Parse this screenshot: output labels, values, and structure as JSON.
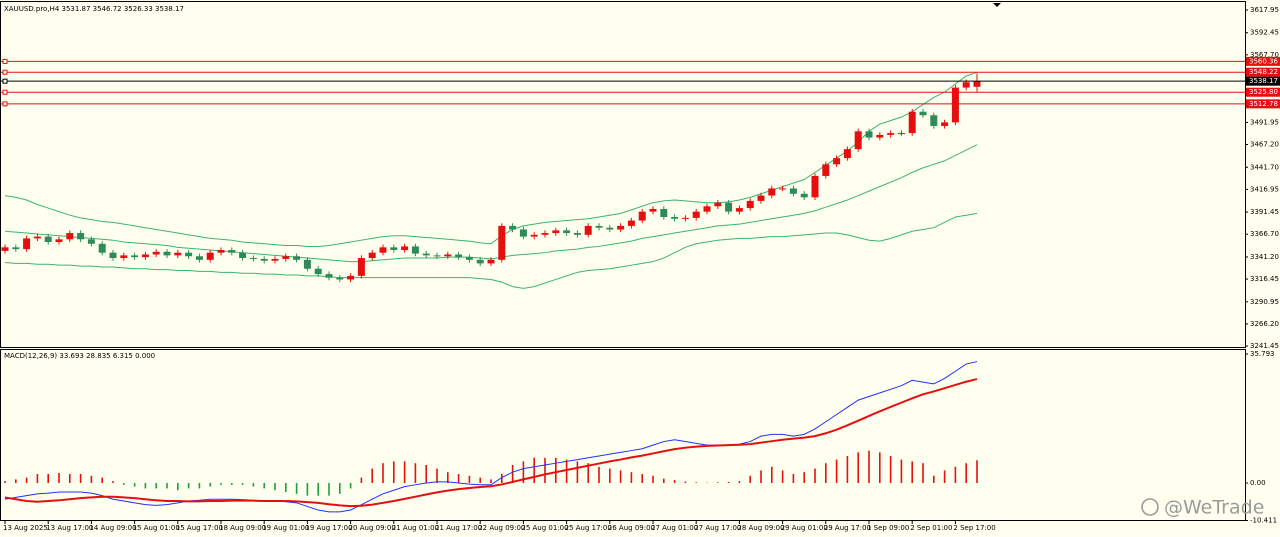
{
  "chart_data": [
    {
      "type": "candlestick",
      "title": "XAUUSD.pro,H4 3531.87 3546.72 3526.33 3538.17",
      "categories": [
        "13 Aug 2025",
        null,
        null,
        null,
        "13 Aug 17:00",
        null,
        null,
        null,
        "14 Aug 09:00",
        null,
        null,
        null,
        "15 Aug 01:00",
        null,
        null,
        null,
        "15 Aug 17:00",
        null,
        null,
        null,
        "18 Aug 09:00",
        null,
        null,
        null,
        "19 Aug 01:00",
        null,
        null,
        null,
        "19 Aug 17:00",
        null,
        null,
        null,
        "20 Aug 09:00",
        null,
        null,
        null,
        "21 Aug 01:00",
        null,
        null,
        null,
        "21 Aug 17:00",
        null,
        null,
        null,
        "22 Aug 09:00",
        null,
        null,
        null,
        "25 Aug 01:00",
        null,
        null,
        null,
        "25 Aug 17:00",
        null,
        null,
        null,
        "26 Aug 09:00",
        null,
        null,
        null,
        "27 Aug 01:00",
        null,
        null,
        null,
        "27 Aug 17:00",
        null,
        null,
        null,
        "28 Aug 09:00",
        null,
        null,
        null,
        "29 Aug 01:00",
        null,
        null,
        null,
        "29 Aug 17:00",
        null,
        null,
        null,
        "1 Sep 09:00",
        null,
        null,
        null,
        "2 Sep 01:00",
        null,
        null,
        null,
        "2 Sep 17:00",
        null,
        null
      ],
      "open": [
        3348,
        3352,
        3350,
        3362,
        3364,
        3358,
        3361,
        3368,
        3361,
        3356,
        3346,
        3340,
        3343,
        3341,
        3344,
        3347,
        3343,
        3346,
        3342,
        3338,
        3346,
        3349,
        3346,
        3340,
        3339,
        3337,
        3339,
        3342,
        3338,
        3328,
        3322,
        3318,
        3316,
        3320,
        3340,
        3346,
        3352,
        3349,
        3353,
        3345,
        3343,
        3342,
        3344,
        3341,
        3338,
        3334,
        3338,
        3376,
        3372,
        3364,
        3366,
        3368,
        3371,
        3368,
        3366,
        3376,
        3374,
        3372,
        3376,
        3382,
        3392,
        3395,
        3386,
        3384,
        3385,
        3392,
        3398,
        3402,
        3392,
        3396,
        3404,
        3410,
        3418,
        3418,
        3412,
        3408,
        3432,
        3445,
        3452,
        3462,
        3482,
        3475,
        3478,
        3480,
        3480,
        3504,
        3500,
        3488,
        3492,
        3531,
        3531.87
      ],
      "high": [
        3355,
        3355,
        3365,
        3367,
        3367,
        3364,
        3371,
        3371,
        3364,
        3359,
        3349,
        3346,
        3346,
        3347,
        3350,
        3350,
        3349,
        3349,
        3345,
        3349,
        3352,
        3352,
        3349,
        3343,
        3342,
        3342,
        3345,
        3345,
        3341,
        3331,
        3325,
        3321,
        3323,
        3343,
        3349,
        3355,
        3355,
        3356,
        3356,
        3348,
        3346,
        3347,
        3347,
        3344,
        3341,
        3341,
        3379,
        3379,
        3375,
        3369,
        3371,
        3374,
        3374,
        3371,
        3379,
        3379,
        3377,
        3379,
        3385,
        3395,
        3398,
        3398,
        3389,
        3388,
        3395,
        3401,
        3405,
        3405,
        3399,
        3407,
        3413,
        3421,
        3421,
        3421,
        3415,
        3435,
        3448,
        3455,
        3465,
        3485,
        3485,
        3481,
        3483,
        3483,
        3507,
        3507,
        3503,
        3495,
        3534,
        3540,
        3546.72
      ],
      "low": [
        3345,
        3347,
        3347,
        3359,
        3355,
        3355,
        3358,
        3358,
        3353,
        3343,
        3337,
        3337,
        3338,
        3338,
        3341,
        3340,
        3340,
        3339,
        3335,
        3335,
        3343,
        3343,
        3337,
        3336,
        3334,
        3334,
        3336,
        3335,
        3325,
        3319,
        3315,
        3313,
        3313,
        3317,
        3337,
        3343,
        3346,
        3346,
        3342,
        3340,
        3339,
        3339,
        3338,
        3335,
        3331,
        3331,
        3335,
        3369,
        3361,
        3361,
        3363,
        3365,
        3365,
        3363,
        3363,
        3371,
        3369,
        3369,
        3373,
        3379,
        3389,
        3383,
        3381,
        3381,
        3382,
        3389,
        3395,
        3389,
        3389,
        3393,
        3401,
        3407,
        3415,
        3409,
        3405,
        3405,
        3429,
        3442,
        3449,
        3459,
        3472,
        3472,
        3475,
        3477,
        3477,
        3497,
        3485,
        3485,
        3489,
        3528,
        3526.33
      ],
      "close": [
        3352,
        3350,
        3362,
        3364,
        3358,
        3361,
        3368,
        3361,
        3356,
        3346,
        3340,
        3343,
        3341,
        3344,
        3347,
        3343,
        3346,
        3342,
        3338,
        3346,
        3349,
        3346,
        3340,
        3339,
        3337,
        3339,
        3342,
        3338,
        3328,
        3322,
        3318,
        3316,
        3320,
        3340,
        3346,
        3352,
        3349,
        3353,
        3345,
        3343,
        3342,
        3344,
        3341,
        3338,
        3334,
        3338,
        3376,
        3372,
        3364,
        3366,
        3368,
        3371,
        3368,
        3366,
        3376,
        3374,
        3372,
        3376,
        3382,
        3392,
        3395,
        3386,
        3384,
        3385,
        3392,
        3398,
        3402,
        3392,
        3396,
        3404,
        3410,
        3418,
        3418,
        3412,
        3408,
        3432,
        3445,
        3452,
        3462,
        3482,
        3475,
        3478,
        3480,
        3480,
        3504,
        3500,
        3488,
        3492,
        3531,
        3537,
        3538.17
      ],
      "up_color": "#e60f0f",
      "down_color": "#2e8b57",
      "series": [
        {
          "color": "#3cb371",
          "values": [
            3410,
            3408,
            3405,
            3400,
            3396,
            3392,
            3388,
            3385,
            3383,
            3381,
            3380,
            3378,
            3376,
            3374,
            3372,
            3370,
            3368,
            3366,
            3364,
            3362,
            3361,
            3360,
            3358,
            3357,
            3356,
            3355,
            3354,
            3354,
            3353,
            3353,
            3354,
            3356,
            3358,
            3360,
            3362,
            3364,
            3365,
            3365,
            3364,
            3363,
            3362,
            3361,
            3360,
            3359,
            3357,
            3356,
            3365,
            3372,
            3376,
            3378,
            3380,
            3381,
            3382,
            3383,
            3384,
            3386,
            3388,
            3390,
            3394,
            3398,
            3402,
            3404,
            3405,
            3404,
            3403,
            3402,
            3402,
            3403,
            3405,
            3408,
            3412,
            3416,
            3420,
            3424,
            3428,
            3436,
            3444,
            3452,
            3460,
            3470,
            3482,
            3490,
            3494,
            3498,
            3504,
            3512,
            3520,
            3526,
            3535,
            3544,
            3548
          ]
        },
        {
          "color": "#3cb371",
          "values": [
            3370,
            3369,
            3368,
            3367,
            3366,
            3365,
            3364,
            3363,
            3362,
            3361,
            3360,
            3358,
            3357,
            3356,
            3355,
            3354,
            3352,
            3351,
            3350,
            3349,
            3348,
            3347,
            3346,
            3345,
            3344,
            3343,
            3342,
            3341,
            3340,
            3339,
            3338,
            3337,
            3336,
            3336,
            3337,
            3338,
            3339,
            3340,
            3340,
            3340,
            3340,
            3341,
            3341,
            3341,
            3340,
            3339,
            3341,
            3343,
            3344,
            3345,
            3346,
            3348,
            3349,
            3350,
            3352,
            3353,
            3355,
            3357,
            3359,
            3362,
            3364,
            3366,
            3368,
            3370,
            3372,
            3374,
            3376,
            3377,
            3378,
            3380,
            3382,
            3384,
            3386,
            3388,
            3390,
            3393,
            3397,
            3401,
            3405,
            3410,
            3415,
            3420,
            3425,
            3430,
            3436,
            3441,
            3445,
            3449,
            3455,
            3461,
            3467
          ]
        },
        {
          "color": "#3cb371",
          "values": [
            3335,
            3334,
            3334,
            3333,
            3333,
            3332,
            3332,
            3331,
            3331,
            3330,
            3330,
            3329,
            3328,
            3328,
            3327,
            3327,
            3326,
            3326,
            3325,
            3325,
            3324,
            3324,
            3323,
            3323,
            3322,
            3322,
            3321,
            3321,
            3320,
            3320,
            3319,
            3318,
            3318,
            3318,
            3318,
            3318,
            3318,
            3318,
            3318,
            3318,
            3318,
            3318,
            3318,
            3318,
            3317,
            3316,
            3313,
            3308,
            3306,
            3308,
            3312,
            3316,
            3320,
            3324,
            3326,
            3327,
            3328,
            3330,
            3332,
            3334,
            3336,
            3340,
            3346,
            3352,
            3356,
            3358,
            3360,
            3361,
            3362,
            3362,
            3363,
            3364,
            3364,
            3365,
            3366,
            3367,
            3368,
            3368,
            3366,
            3363,
            3360,
            3359,
            3362,
            3366,
            3370,
            3372,
            3374,
            3380,
            3386,
            3388,
            3390
          ]
        }
      ],
      "levels": [
        {
          "value": 3560.36,
          "color": "#e60f0f"
        },
        {
          "value": 3548.22,
          "color": "#e60f0f"
        },
        {
          "value": 3538.17,
          "color": "#000000"
        },
        {
          "value": 3525.8,
          "label": "3525.80",
          "color": "#e60f0f"
        },
        {
          "value": 3512.78,
          "color": "#e60f0f"
        }
      ],
      "ylim": [
        3239.2,
        3626.9
      ],
      "yticks": [
        3617.95,
        3592.45,
        {
          "value": 3567.7,
          "label": "3567.70"
        },
        3491.95,
        {
          "value": 3467.2,
          "label": "3467.20"
        },
        {
          "value": 3441.7,
          "label": "3441.70"
        },
        3416.95,
        3391.45,
        {
          "value": 3366.7,
          "label": "3366.70"
        },
        {
          "value": 3341.2,
          "label": "3341.20"
        },
        3316.45,
        3290.95,
        {
          "value": 3266.2,
          "label": "3266.20"
        },
        3241.45
      ]
    },
    {
      "type": "macd",
      "title": "MACD(12,26,9) 33.693 28.835 6.315 0.000",
      "histogram": {
        "up_color": "#e60f0f",
        "down_color": "#1e9e3c",
        "values": [
          0.5,
          1,
          1.5,
          2.5,
          2.5,
          2.8,
          2.5,
          2.5,
          2,
          1.5,
          0.5,
          -0.5,
          -1,
          -1.5,
          -1.5,
          -1.5,
          -2,
          -1.5,
          -1.5,
          -1,
          -0.5,
          -0.5,
          -0.5,
          -1,
          -1.5,
          -2,
          -2.5,
          -3,
          -3.5,
          -3.5,
          -3.5,
          -3,
          -1.5,
          1.5,
          4,
          5.5,
          6,
          6,
          5.5,
          5,
          4,
          3,
          2.5,
          2,
          1.5,
          1,
          2.5,
          5,
          6,
          7,
          7,
          7,
          6.5,
          6,
          5.5,
          4.5,
          4,
          3.5,
          3,
          2.5,
          2,
          1.2,
          0.8,
          0.4,
          0.2,
          0.1,
          0.2,
          0.3,
          0.5,
          2,
          3.5,
          4.5,
          3.5,
          2.5,
          3,
          4,
          5.5,
          6.5,
          7.5,
          8.5,
          9,
          8.5,
          7.5,
          6.5,
          6,
          5.5,
          2,
          3.5,
          4.5,
          5.5,
          6.315
        ]
      },
      "series": [
        {
          "color": "#2030ff",
          "values": [
            -4.5,
            -4,
            -3.5,
            -3,
            -2.8,
            -2.5,
            -2.5,
            -2.5,
            -2.8,
            -3.5,
            -4.5,
            -5,
            -5.5,
            -6,
            -6.2,
            -6,
            -5.5,
            -5,
            -4.8,
            -4.5,
            -4.5,
            -4.5,
            -4.6,
            -4.8,
            -5,
            -5,
            -5.2,
            -5.5,
            -6.5,
            -7.5,
            -8,
            -8,
            -7.5,
            -6,
            -4.5,
            -3,
            -2,
            -1,
            -0.5,
            0,
            0.3,
            0.3,
            0,
            -0.3,
            -0.5,
            -0.5,
            1.5,
            3,
            4,
            4.5,
            5,
            5.5,
            6,
            6.5,
            7,
            7.5,
            8,
            8.5,
            9,
            9.5,
            10.5,
            11.5,
            12,
            11.5,
            11,
            10.5,
            10.5,
            10.5,
            10.8,
            11.5,
            13,
            13.5,
            13.5,
            13,
            13.5,
            15,
            17,
            19,
            21,
            23,
            24,
            25,
            26,
            27,
            28.5,
            28,
            27.5,
            29,
            31,
            33,
            33.693
          ]
        },
        {
          "color": "#e60f0f",
          "values": [
            -4,
            -4.5,
            -5,
            -5.2,
            -5,
            -4.8,
            -4.5,
            -4.2,
            -4,
            -3.8,
            -3.8,
            -4,
            -4.2,
            -4.5,
            -4.8,
            -5,
            -5,
            -5.1,
            -5.1,
            -5,
            -5,
            -4.9,
            -4.9,
            -4.9,
            -5,
            -5,
            -5,
            -5.1,
            -5.3,
            -5.5,
            -5.9,
            -6.2,
            -6.4,
            -6.3,
            -6,
            -5.5,
            -5,
            -4.4,
            -3.8,
            -3.2,
            -2.6,
            -2.1,
            -1.7,
            -1.4,
            -1.1,
            -0.9,
            -0.4,
            0.3,
            1,
            1.7,
            2.4,
            3,
            3.6,
            4.2,
            4.8,
            5.4,
            6,
            6.5,
            7.1,
            7.6,
            8.2,
            8.8,
            9.4,
            9.8,
            10.1,
            10.3,
            10.4,
            10.5,
            10.6,
            10.8,
            11.2,
            11.6,
            12,
            12.3,
            12.6,
            13,
            13.8,
            14.8,
            16,
            17.3,
            18.6,
            19.9,
            21.1,
            22.3,
            23.5,
            24.6,
            25.4,
            26.3,
            27.2,
            28.1,
            28.835
          ]
        }
      ],
      "ylim": [
        -10.54,
        36.9
      ],
      "yticks": [
        35.793,
        {
          "value": 0,
          "label": "0.00"
        },
        -10.411
      ]
    }
  ],
  "watermark": "@WeTrade"
}
